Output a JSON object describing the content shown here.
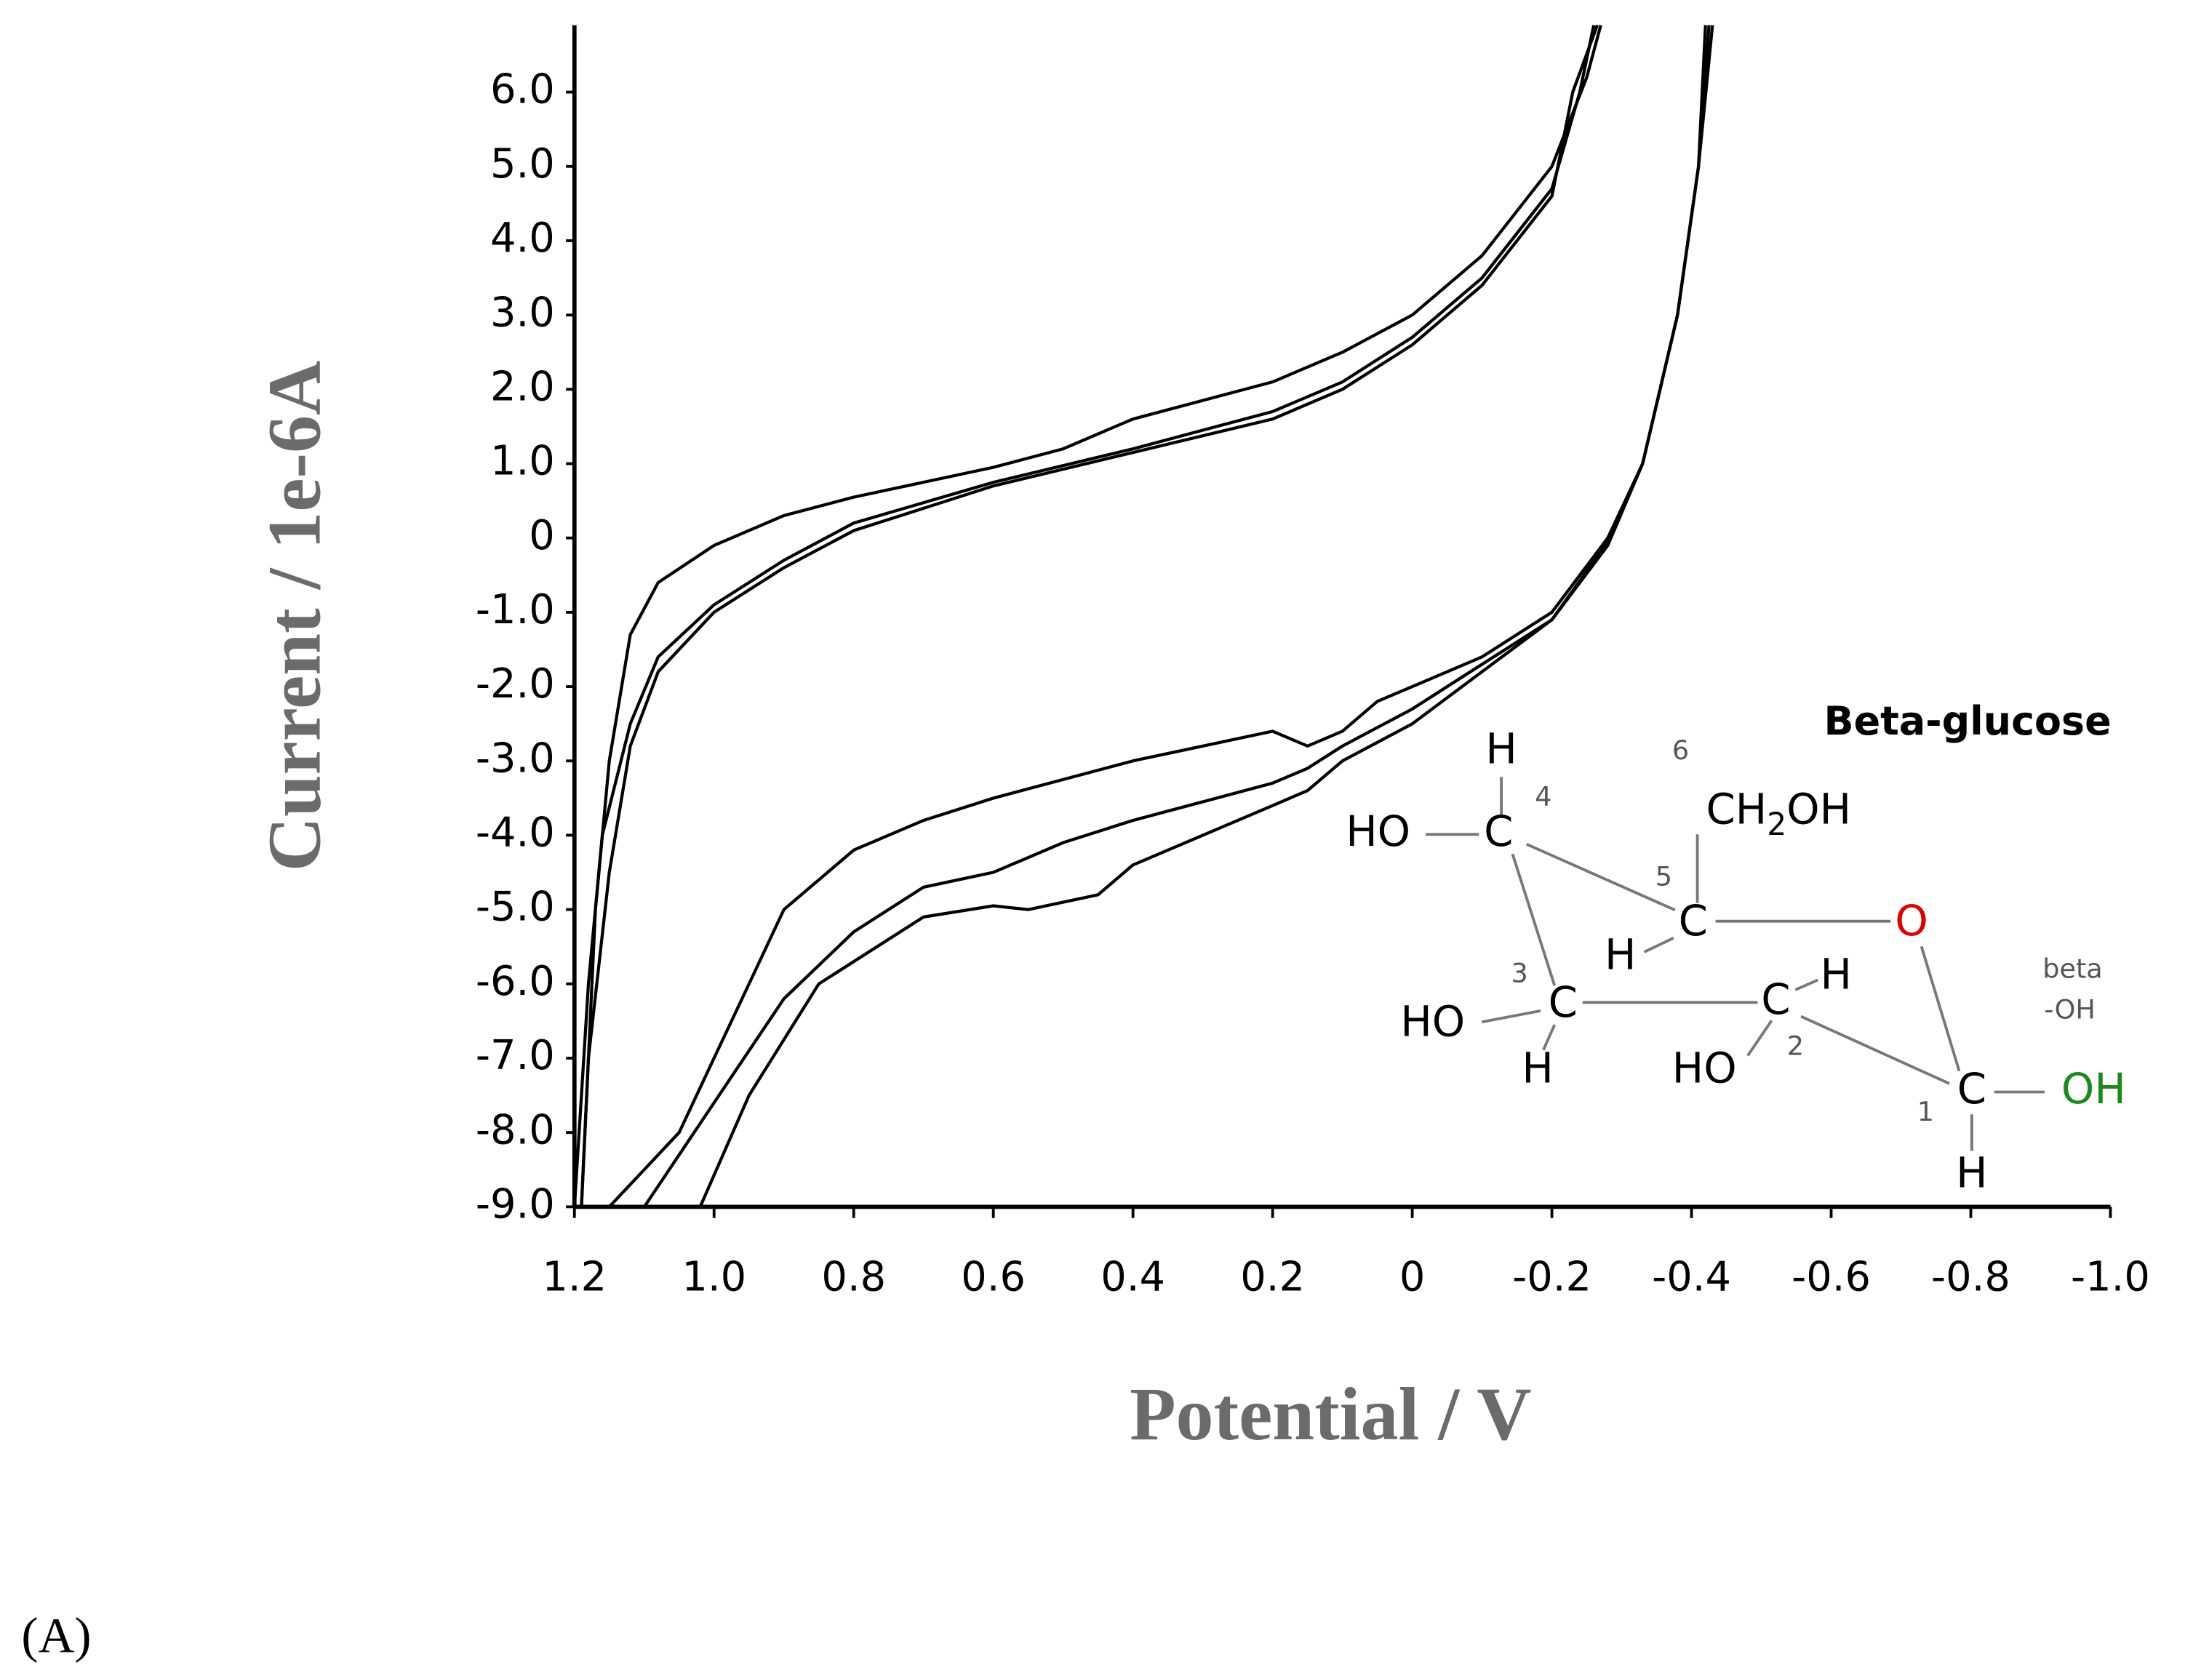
{
  "chart_data": {
    "type": "line",
    "xlabel": "Potential / V",
    "ylabel": "Current / 1e-6A",
    "xlim": [
      1.2,
      -1.0
    ],
    "ylim": [
      -9.0,
      6.9
    ],
    "xticks": [
      1.2,
      {
        "value": 1.0,
        "label": "1.0"
      },
      0.8,
      0.6,
      0.4,
      0.2,
      0,
      -0.2,
      -0.4,
      -0.6,
      -0.8,
      {
        "value": -1.0,
        "label": "-1.0"
      }
    ],
    "yticks": [
      {
        "value": 6,
        "label": "6.0"
      },
      {
        "value": 5,
        "label": "5.0"
      },
      {
        "value": 4,
        "label": "4.0"
      },
      {
        "value": 3,
        "label": "3.0"
      },
      {
        "value": 2,
        "label": "2.0"
      },
      {
        "value": 1,
        "label": "1.0"
      },
      0,
      {
        "value": -1,
        "label": "-1.0"
      },
      {
        "value": -2,
        "label": "-2.0"
      },
      {
        "value": -3,
        "label": "-3.0"
      },
      {
        "value": -4,
        "label": "-4.0"
      },
      {
        "value": -5,
        "label": "-5.0"
      },
      {
        "value": -6,
        "label": "-6.0"
      },
      {
        "value": -7,
        "label": "-7.0"
      },
      {
        "value": -8,
        "label": "-8.0"
      },
      {
        "value": -9,
        "label": "-9.0"
      }
    ],
    "series": [
      {
        "color": "#000000",
        "x": [
          1.15,
          1.05,
          1.0,
          0.95,
          0.9,
          0.8,
          0.7,
          0.6,
          0.4,
          0.3,
          0.2,
          0.15,
          0.1,
          0.05,
          0,
          -0.1,
          -0.2,
          -0.28,
          -0.33,
          -0.38,
          -0.41,
          -0.42,
          null,
          -0.27,
          -0.25,
          -0.2,
          -0.1,
          0,
          0.1,
          0.2,
          0.4,
          0.5,
          0.6,
          0.8,
          0.9,
          1.0,
          1.08,
          1.12,
          1.15,
          1.17,
          1.19
        ],
        "values": [
          -9,
          -8,
          -7,
          -6,
          -5,
          -4.2,
          -3.8,
          -3.5,
          -3.0,
          -2.8,
          -2.6,
          -2.8,
          -2.6,
          -2.2,
          -2.0,
          -1.6,
          -1.0,
          0,
          1,
          3,
          5,
          6.9,
          null,
          6.9,
          6.2,
          5.0,
          3.8,
          3.0,
          2.5,
          2.1,
          1.6,
          1.2,
          0.95,
          0.55,
          0.3,
          -0.1,
          -0.6,
          -1.3,
          -3,
          -5,
          -9
        ]
      },
      {
        "color": "#000000",
        "x": [
          1.1,
          1.0,
          0.9,
          0.8,
          0.7,
          0.6,
          0.5,
          0.4,
          0.2,
          0.15,
          0.1,
          0,
          -0.1,
          -0.2,
          -0.28,
          -0.33,
          -0.38,
          -0.41,
          -0.425,
          null,
          -0.26,
          -0.24,
          -0.2,
          -0.1,
          0,
          0.1,
          0.2,
          0.4,
          0.6,
          0.8,
          0.9,
          1.0,
          1.08,
          1.12,
          1.16,
          1.18,
          1.2
        ],
        "values": [
          -9,
          -7.6,
          -6.2,
          -5.3,
          -4.7,
          -4.5,
          -4.1,
          -3.8,
          -3.3,
          -3.1,
          -2.8,
          -2.3,
          -1.7,
          -1.1,
          -0.05,
          1,
          3,
          5,
          6.9,
          null,
          6.9,
          6,
          4.7,
          3.5,
          2.7,
          2.1,
          1.7,
          1.2,
          0.75,
          0.2,
          -0.3,
          -0.9,
          -1.6,
          -2.5,
          -4,
          -6,
          -9
        ]
      },
      {
        "color": "#000000",
        "x": [
          1.02,
          0.95,
          0.85,
          0.7,
          0.6,
          0.55,
          0.45,
          0.4,
          0.3,
          0.2,
          0.15,
          0.1,
          0,
          -0.1,
          -0.2,
          -0.28,
          -0.33,
          -0.38,
          -0.41,
          -0.43,
          null,
          -0.265,
          -0.23,
          -0.2,
          -0.1,
          0,
          0.1,
          0.2,
          0.4,
          0.6,
          0.8,
          0.9,
          1.0,
          1.08,
          1.12,
          1.15,
          1.18,
          1.19
        ],
        "values": [
          -9,
          -7.5,
          -6,
          -5.1,
          -4.95,
          -5.0,
          -4.8,
          -4.4,
          -4.0,
          -3.6,
          -3.4,
          -3.0,
          -2.5,
          -1.8,
          -1.1,
          -0.1,
          1,
          3,
          5,
          6.9,
          null,
          6.9,
          6,
          4.6,
          3.4,
          2.6,
          2.0,
          1.6,
          1.15,
          0.7,
          0.1,
          -0.4,
          -1.0,
          -1.8,
          -2.8,
          -4.5,
          -7,
          -9
        ]
      }
    ]
  },
  "inset": {
    "title": "Beta-glucose",
    "labels": [
      "H",
      "4",
      "6",
      "CH",
      "2",
      "OH",
      "HO",
      "C",
      "5",
      "H",
      "C",
      "O",
      "beta",
      "-OH",
      "3",
      "HO",
      "C",
      "H",
      "C",
      "H",
      "HO",
      "2",
      "1",
      "C",
      "OH",
      "H"
    ]
  },
  "panel_label": "(A)"
}
